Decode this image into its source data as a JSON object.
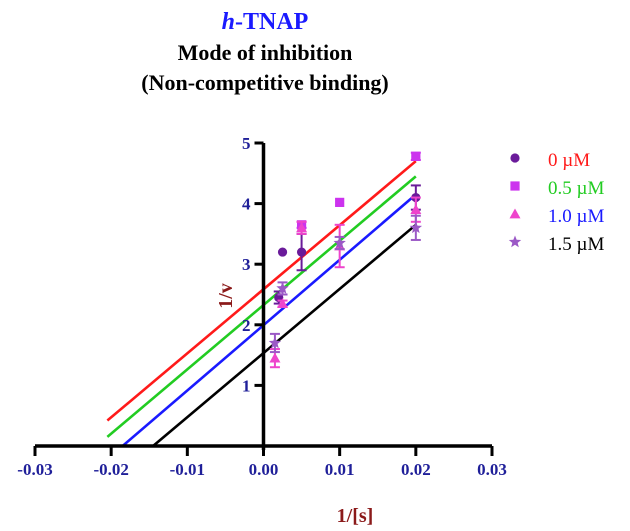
{
  "title": {
    "prefix": "h",
    "main": "-TNAP",
    "line2": "Mode of inhibition",
    "line3": "(Non-competitive binding)"
  },
  "chart_data": {
    "type": "scatter",
    "title": "h-TNAP Mode of inhibition (Non-competitive binding)",
    "xlabel": "1/[s]",
    "ylabel": "1/v",
    "xlim": [
      -0.03,
      0.03
    ],
    "ylim": [
      0,
      5
    ],
    "x_ticks": [
      "-0.03",
      "-0.02",
      "-0.01",
      "0.00",
      "0.01",
      "0.02",
      "0.03"
    ],
    "y_ticks": [
      "1",
      "2",
      "3",
      "4",
      "5"
    ],
    "grid": false,
    "legend_position": "right",
    "series": [
      {
        "name": "0 µM",
        "marker": "circle",
        "marker_color": "#6a1b9a",
        "line_color": "#ff1a1a",
        "points": [
          {
            "x": 0.002,
            "y": 2.45,
            "err": 0.1
          },
          {
            "x": 0.0025,
            "y": 3.2,
            "err": 0.0
          },
          {
            "x": 0.005,
            "y": 3.2,
            "err": 0.3
          },
          {
            "x": 0.02,
            "y": 4.1,
            "err": 0.2
          }
        ],
        "fit": {
          "x": [
            -0.0205,
            0.02
          ],
          "y": [
            0.42,
            4.7
          ]
        }
      },
      {
        "name": "0.5 µM",
        "marker": "square",
        "marker_color": "#cc33ee",
        "line_color": "#22cc22",
        "points": [
          {
            "x": 0.005,
            "y": 3.65,
            "err": 0.05
          },
          {
            "x": 0.01,
            "y": 4.02,
            "err": 0.0
          },
          {
            "x": 0.02,
            "y": 4.78,
            "err": 0.06
          }
        ],
        "fit": {
          "x": [
            -0.0205,
            0.02
          ],
          "y": [
            0.15,
            4.45
          ]
        }
      },
      {
        "name": "1.0 µM",
        "marker": "triangle",
        "marker_color": "#ee44cc",
        "line_color": "#1a1aff",
        "points": [
          {
            "x": 0.0015,
            "y": 1.45,
            "err": 0.15
          },
          {
            "x": 0.0025,
            "y": 2.35,
            "err": 0.05
          },
          {
            "x": 0.005,
            "y": 3.6,
            "err": 0.1
          },
          {
            "x": 0.01,
            "y": 3.3,
            "err": 0.35
          },
          {
            "x": 0.02,
            "y": 3.9,
            "err": 0.2
          }
        ],
        "fit": {
          "x": [
            -0.0185,
            0.02
          ],
          "y": [
            0.0,
            4.15
          ]
        }
      },
      {
        "name": "1.5 µM",
        "marker": "star",
        "marker_color": "#9b59c6",
        "line_color": "#000000",
        "points": [
          {
            "x": 0.0015,
            "y": 1.7,
            "err": 0.15
          },
          {
            "x": 0.0025,
            "y": 2.6,
            "err": 0.1
          },
          {
            "x": 0.01,
            "y": 3.35,
            "err": 0.1
          },
          {
            "x": 0.02,
            "y": 3.6,
            "err": 0.2
          }
        ],
        "fit": {
          "x": [
            -0.0145,
            0.02
          ],
          "y": [
            0.0,
            3.65
          ]
        }
      }
    ]
  },
  "legend": {
    "items": [
      {
        "label": "0 µM",
        "text_color": "#ff1a1a"
      },
      {
        "label": "0.5 µM",
        "text_color": "#22cc22"
      },
      {
        "label": "1.0 µM",
        "text_color": "#1a1aff"
      },
      {
        "label": "1.5 µM",
        "text_color": "#000000"
      }
    ]
  }
}
